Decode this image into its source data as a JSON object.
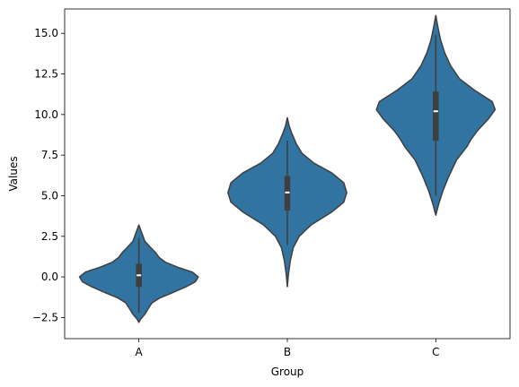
{
  "chart_data": {
    "type": "violin",
    "title": "",
    "xlabel": "Group",
    "ylabel": "Values",
    "categories": [
      "A",
      "B",
      "C"
    ],
    "ylim": [
      -3.8,
      16.5
    ],
    "yticks": [
      -2.5,
      0.0,
      2.5,
      5.0,
      7.5,
      10.0,
      12.5,
      15.0
    ],
    "ytick_labels": [
      "−2.5",
      "0.0",
      "2.5",
      "5.0",
      "7.5",
      "10.0",
      "12.5",
      "15.0"
    ],
    "grid": false,
    "colors": {
      "fill": "#3274a1",
      "line": "#3f3f3f",
      "median": "#ffffff"
    },
    "violins": [
      {
        "category": "A",
        "min": -2.2,
        "q1": -0.6,
        "median": 0.1,
        "q3": 0.8,
        "max": 2.4,
        "kde_min": -2.8,
        "kde_max": 3.2,
        "profile": [
          [
            -2.8,
            0.0
          ],
          [
            -2.6,
            0.03
          ],
          [
            -2.3,
            0.1
          ],
          [
            -2.0,
            0.15
          ],
          [
            -1.6,
            0.22
          ],
          [
            -1.3,
            0.35
          ],
          [
            -1.0,
            0.55
          ],
          [
            -0.6,
            0.8
          ],
          [
            -0.3,
            0.95
          ],
          [
            0.0,
            1.0
          ],
          [
            0.3,
            0.9
          ],
          [
            0.6,
            0.65
          ],
          [
            0.9,
            0.45
          ],
          [
            1.2,
            0.34
          ],
          [
            1.5,
            0.28
          ],
          [
            1.8,
            0.2
          ],
          [
            2.2,
            0.1
          ],
          [
            2.7,
            0.05
          ],
          [
            3.2,
            0.0
          ]
        ]
      },
      {
        "category": "B",
        "min": 2.0,
        "q1": 4.1,
        "median": 5.2,
        "q3": 6.2,
        "max": 8.4,
        "kde_min": -0.6,
        "kde_max": 9.8,
        "profile": [
          [
            -0.6,
            0.0
          ],
          [
            0.2,
            0.02
          ],
          [
            1.0,
            0.05
          ],
          [
            1.8,
            0.1
          ],
          [
            2.5,
            0.2
          ],
          [
            3.2,
            0.4
          ],
          [
            4.0,
            0.75
          ],
          [
            4.6,
            0.95
          ],
          [
            5.2,
            1.0
          ],
          [
            5.8,
            0.95
          ],
          [
            6.4,
            0.75
          ],
          [
            7.0,
            0.45
          ],
          [
            7.6,
            0.25
          ],
          [
            8.2,
            0.15
          ],
          [
            8.8,
            0.08
          ],
          [
            9.3,
            0.03
          ],
          [
            9.8,
            0.0
          ]
        ]
      },
      {
        "category": "C",
        "min": 5.0,
        "q1": 8.4,
        "median": 10.2,
        "q3": 11.4,
        "max": 14.9,
        "kde_min": 3.8,
        "kde_max": 16.1,
        "profile": [
          [
            3.8,
            0.0
          ],
          [
            4.5,
            0.05
          ],
          [
            5.3,
            0.12
          ],
          [
            6.2,
            0.22
          ],
          [
            7.2,
            0.35
          ],
          [
            8.0,
            0.52
          ],
          [
            8.5,
            0.6
          ],
          [
            9.0,
            0.7
          ],
          [
            9.7,
            0.88
          ],
          [
            10.3,
            1.0
          ],
          [
            10.8,
            0.95
          ],
          [
            11.5,
            0.65
          ],
          [
            12.2,
            0.4
          ],
          [
            13.0,
            0.25
          ],
          [
            13.8,
            0.15
          ],
          [
            14.6,
            0.08
          ],
          [
            15.3,
            0.04
          ],
          [
            16.1,
            0.0
          ]
        ]
      }
    ]
  }
}
